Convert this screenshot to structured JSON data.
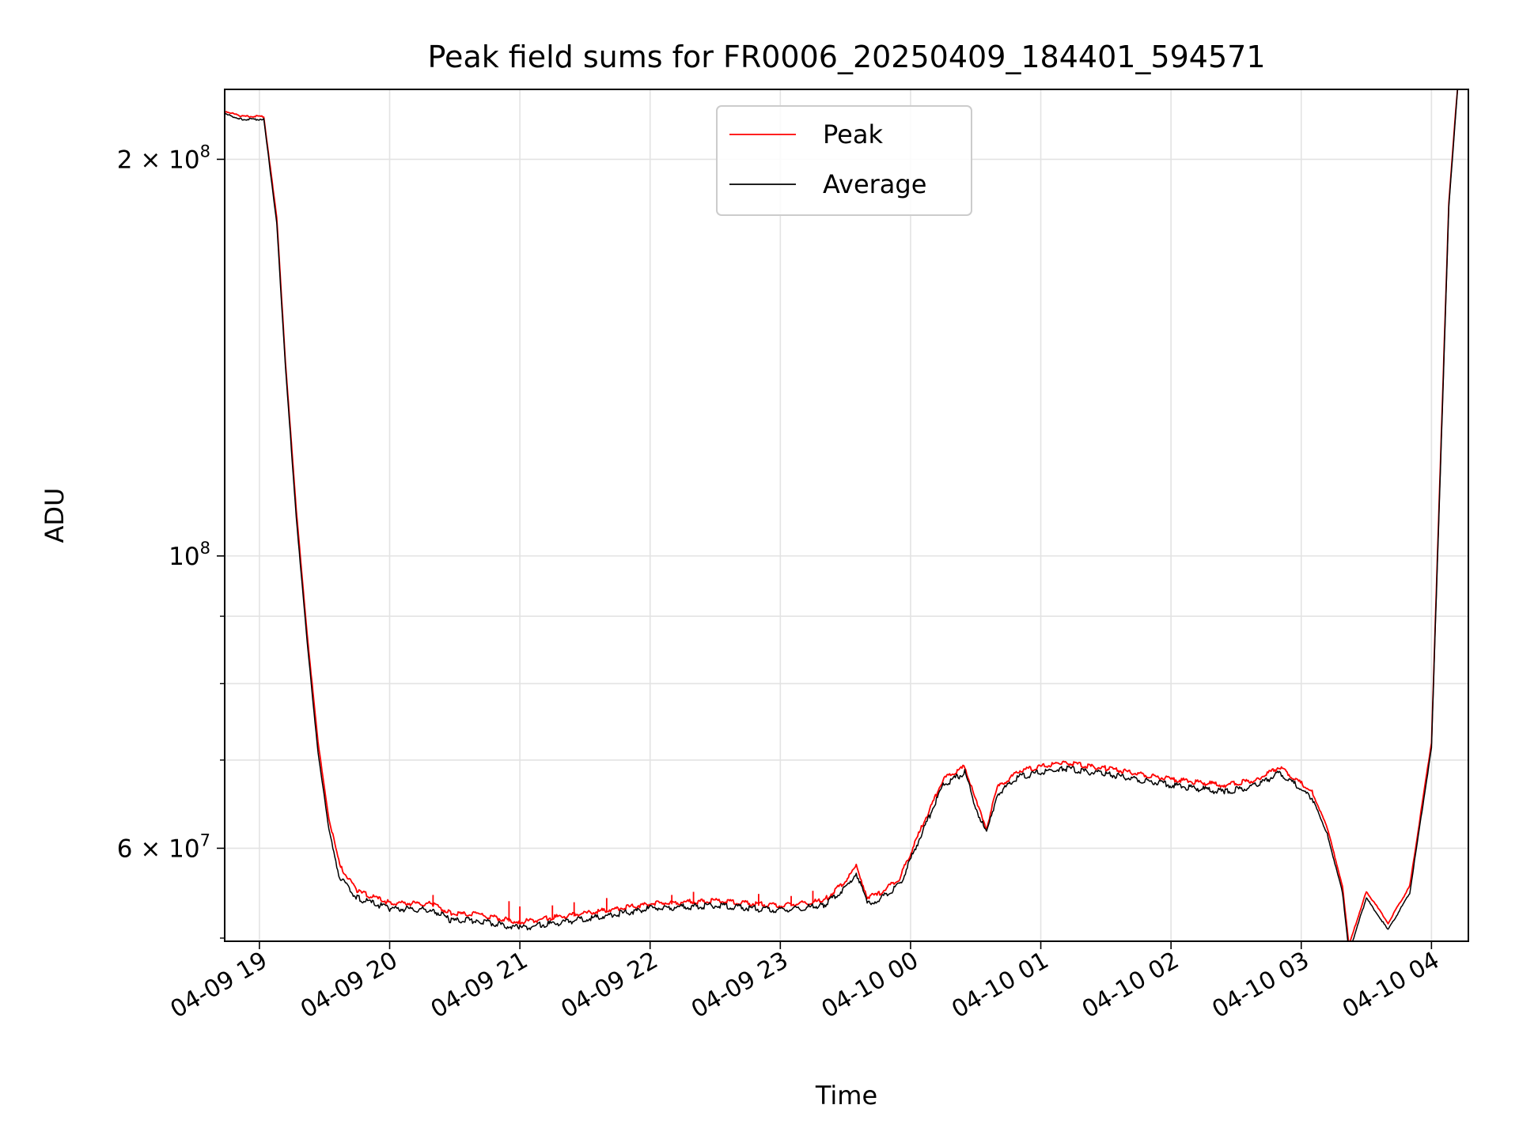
{
  "chart_data": {
    "type": "line",
    "title": "Peak field sums for FR0006_20250409_184401_594571",
    "xlabel": "Time",
    "ylabel": "ADU",
    "y_scale": "log",
    "ylim": [
      51000000,
      226000000
    ],
    "xlim": [
      "2025-04-09 18:44",
      "2025-04-10 04:17"
    ],
    "x_ticks": [
      "04-09 19",
      "04-09 20",
      "04-09 21",
      "04-09 22",
      "04-09 23",
      "04-10 00",
      "04-10 01",
      "04-10 02",
      "04-10 03",
      "04-10 04"
    ],
    "y_tick_labels": [
      {
        "value": 200000000,
        "mantissa": "2",
        "base": "10",
        "exp": "8"
      },
      {
        "value": 100000000,
        "mantissa": "",
        "base": "10",
        "exp": "8"
      },
      {
        "value": 60000000,
        "mantissa": "6",
        "base": "10",
        "exp": "7"
      }
    ],
    "y_minor_ticks": [
      70000000,
      80000000,
      90000000
    ],
    "grid": true,
    "legend_placement": "upper-center",
    "series": [
      {
        "name": "Peak",
        "color": "#ff0000",
        "x": [
          "2025-04-09 18:44",
          "2025-04-09 18:52",
          "2025-04-09 19:02",
          "2025-04-09 19:08",
          "2025-04-09 19:12",
          "2025-04-09 19:17",
          "2025-04-09 19:22",
          "2025-04-09 19:27",
          "2025-04-09 19:32",
          "2025-04-09 19:37",
          "2025-04-09 19:45",
          "2025-04-09 20:00",
          "2025-04-09 20:20",
          "2025-04-09 20:28",
          "2025-04-09 20:40",
          "2025-04-09 21:00",
          "2025-04-09 21:30",
          "2025-04-09 22:00",
          "2025-04-09 22:30",
          "2025-04-09 23:00",
          "2025-04-09 23:20",
          "2025-04-09 23:30",
          "2025-04-09 23:35",
          "2025-04-09 23:40",
          "2025-04-09 23:45",
          "2025-04-09 23:55",
          "2025-04-10 00:05",
          "2025-04-10 00:15",
          "2025-04-10 00:25",
          "2025-04-10 00:30",
          "2025-04-10 00:35",
          "2025-04-10 00:40",
          "2025-04-10 00:50",
          "2025-04-10 01:10",
          "2025-04-10 01:30",
          "2025-04-10 02:00",
          "2025-04-10 02:25",
          "2025-04-10 02:40",
          "2025-04-10 02:50",
          "2025-04-10 03:05",
          "2025-04-10 03:12",
          "2025-04-10 03:19",
          "2025-04-10 03:22",
          "2025-04-10 03:30",
          "2025-04-10 03:35",
          "2025-04-10 03:40",
          "2025-04-10 03:50",
          "2025-04-10 04:00",
          "2025-04-10 04:05",
          "2025-04-10 04:08",
          "2025-04-10 04:12"
        ],
        "y": [
          217000000,
          215000000,
          215000000,
          180000000,
          140000000,
          108000000,
          87000000,
          72000000,
          63000000,
          58000000,
          55500000,
          54400000,
          54300000,
          53400000,
          53300000,
          52600000,
          53400000,
          54300000,
          54600000,
          54100000,
          54600000,
          56500000,
          58000000,
          55000000,
          55200000,
          56800000,
          62000000,
          67500000,
          69000000,
          65000000,
          62000000,
          66500000,
          68500000,
          69500000,
          68800000,
          67500000,
          66800000,
          67500000,
          69000000,
          66000000,
          62000000,
          56000000,
          50500000,
          55500000,
          54000000,
          52500000,
          56000000,
          72000000,
          130000000,
          185000000,
          226000000
        ],
        "spikes": [
          {
            "x": "2025-04-09 20:20",
            "y": 55300000
          },
          {
            "x": "2025-04-09 20:55",
            "y": 54700000
          },
          {
            "x": "2025-04-09 21:00",
            "y": 54200000
          },
          {
            "x": "2025-04-09 21:15",
            "y": 54300000
          },
          {
            "x": "2025-04-09 21:25",
            "y": 54600000
          },
          {
            "x": "2025-04-09 21:40",
            "y": 55000000
          },
          {
            "x": "2025-04-09 22:10",
            "y": 55300000
          },
          {
            "x": "2025-04-09 22:20",
            "y": 55600000
          },
          {
            "x": "2025-04-09 22:50",
            "y": 55400000
          },
          {
            "x": "2025-04-09 23:05",
            "y": 55200000
          },
          {
            "x": "2025-04-09 23:15",
            "y": 55700000
          }
        ]
      },
      {
        "name": "Average",
        "color": "#000000",
        "x": [
          "2025-04-09 18:44",
          "2025-04-09 18:52",
          "2025-04-09 19:02",
          "2025-04-09 19:08",
          "2025-04-09 19:12",
          "2025-04-09 19:17",
          "2025-04-09 19:22",
          "2025-04-09 19:27",
          "2025-04-09 19:32",
          "2025-04-09 19:37",
          "2025-04-09 19:45",
          "2025-04-09 20:00",
          "2025-04-09 20:20",
          "2025-04-09 20:28",
          "2025-04-09 20:40",
          "2025-04-09 21:00",
          "2025-04-09 21:30",
          "2025-04-09 22:00",
          "2025-04-09 22:30",
          "2025-04-09 23:00",
          "2025-04-09 23:20",
          "2025-04-09 23:30",
          "2025-04-09 23:35",
          "2025-04-09 23:40",
          "2025-04-09 23:45",
          "2025-04-09 23:55",
          "2025-04-10 00:05",
          "2025-04-10 00:15",
          "2025-04-10 00:25",
          "2025-04-10 00:30",
          "2025-04-10 00:35",
          "2025-04-10 00:40",
          "2025-04-10 00:50",
          "2025-04-10 01:10",
          "2025-04-10 01:30",
          "2025-04-10 02:00",
          "2025-04-10 02:25",
          "2025-04-10 02:40",
          "2025-04-10 02:50",
          "2025-04-10 03:05",
          "2025-04-10 03:12",
          "2025-04-10 03:19",
          "2025-04-10 03:22",
          "2025-04-10 03:30",
          "2025-04-10 03:35",
          "2025-04-10 03:40",
          "2025-04-10 03:50",
          "2025-04-10 04:00",
          "2025-04-10 04:05",
          "2025-04-10 04:08",
          "2025-04-10 04:12"
        ],
        "y": [
          216500000,
          214500000,
          214500000,
          179000000,
          139000000,
          107000000,
          86000000,
          71000000,
          62000000,
          57000000,
          55000000,
          54000000,
          53900000,
          52900000,
          52900000,
          52200000,
          53000000,
          54000000,
          54300000,
          53800000,
          54300000,
          56000000,
          57500000,
          54500000,
          54800000,
          56300000,
          61500000,
          67000000,
          68500000,
          64500000,
          61500000,
          66000000,
          68000000,
          69000000,
          68300000,
          67000000,
          66200000,
          67000000,
          68500000,
          65500000,
          61500000,
          55500000,
          50000000,
          55000000,
          53500000,
          52000000,
          55500000,
          71500000,
          129000000,
          184000000,
          226000000
        ]
      }
    ]
  }
}
